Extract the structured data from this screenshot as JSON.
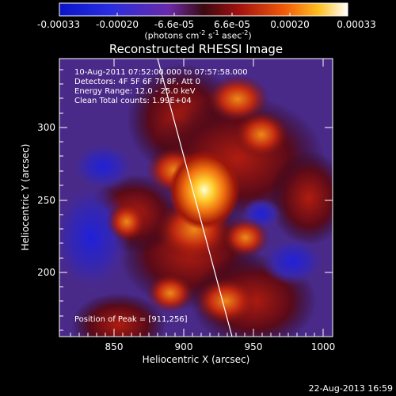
{
  "colorbar": {
    "ticks": [
      "-0.00033",
      "-0.00020",
      "-6.6e-05",
      "6.6e-05",
      "0.00020",
      "0.00033"
    ],
    "unit_label": "(photons cm",
    "unit_sup1": "-2",
    "unit_mid": " s",
    "unit_sup2": "-1",
    "unit_mid2": " asec",
    "unit_sup3": "-2",
    "unit_end": ")"
  },
  "plot": {
    "title": "Reconstructed RHESSI Image",
    "xlabel": "Heliocentric X (arcsec)",
    "ylabel": "Heliocentric Y (arcsec)",
    "xticks": [
      "850",
      "900",
      "950",
      "1000"
    ],
    "yticks": [
      "300",
      "250",
      "200"
    ],
    "info_lines": [
      "10-Aug-2011 07:52:00.000 to 07:57:58.000",
      "Detectors: 4F 5F 6F 7F 8F, Att 0",
      "Energy Range: 12.0 - 25.0 keV",
      "Clean    Total counts: 1.99E+04"
    ],
    "peak_label": "Position of Peak = [911,256]"
  },
  "footer": {
    "date": "22-Aug-2013 16:59"
  },
  "colors": {
    "background": "#000000",
    "low": "#1b2bc8",
    "mid": "#5a2a8a",
    "high_orange": "#e87a10",
    "peak": "#ffffb0"
  }
}
